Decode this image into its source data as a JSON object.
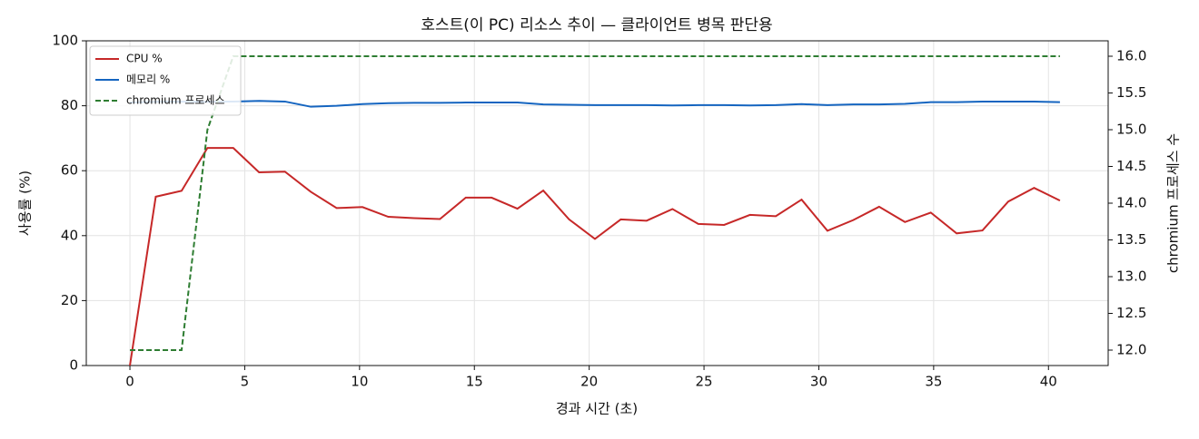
{
  "chart_data": {
    "type": "line",
    "title": "호스트(이 PC) 리소스 추이 — 클라이언트 병목 판단용",
    "x_label": "경과 시간 (초)",
    "y_label": "사용률 (%)",
    "y2_label": "chromium 프로세스 수",
    "x": [
      0,
      1.125,
      2.25,
      3.375,
      4.5,
      5.625,
      6.75,
      7.875,
      9,
      10.125,
      11.25,
      12.375,
      13.5,
      14.625,
      15.75,
      16.875,
      18,
      19.125,
      20.25,
      21.375,
      22.5,
      23.625,
      24.75,
      25.875,
      27,
      28.125,
      29.25,
      30.375,
      31.5,
      32.625,
      33.75,
      34.875,
      36,
      37.125,
      38.25,
      39.375,
      40.5
    ],
    "series": [
      {
        "name": "CPU %",
        "color": "#c62828",
        "values": [
          0,
          52,
          53.8,
          67,
          67,
          59.5,
          59.7,
          53.5,
          48.5,
          48.8,
          45.8,
          45.4,
          45.1,
          51.7,
          51.7,
          48.3,
          53.9,
          45,
          39,
          45,
          44.6,
          48.2,
          43.6,
          43.3,
          46.4,
          46,
          51.1,
          41.5,
          44.8,
          48.9,
          44.2,
          47.1,
          40.7,
          41.6,
          50.5,
          54.7,
          50.8
        ]
      },
      {
        "name": "메모리 %",
        "color": "#1565c0",
        "values": [
          81,
          81.2,
          81.3,
          81.2,
          81.3,
          81.5,
          81.3,
          79.7,
          80,
          80.5,
          80.8,
          80.9,
          80.9,
          81,
          81,
          81,
          80.4,
          80.3,
          80.2,
          80.2,
          80.2,
          80.1,
          80.2,
          80.2,
          80.1,
          80.2,
          80.5,
          80.2,
          80.4,
          80.4,
          80.6,
          81.1,
          81.1,
          81.3,
          81.3,
          81.3,
          81.1
        ]
      },
      {
        "name": "chromium 프로세스",
        "color": "#2e7d32",
        "dashed": true,
        "axis": "y2",
        "values": [
          12,
          12,
          12,
          15,
          16,
          16,
          16,
          16,
          16,
          16,
          16,
          16,
          16,
          16,
          16,
          16,
          16,
          16,
          16,
          16,
          16,
          16,
          16,
          16,
          16,
          16,
          16,
          16,
          16,
          16,
          16,
          16,
          16,
          16,
          16,
          16,
          16
        ]
      }
    ],
    "xlim": [
      -1.9,
      42.6
    ],
    "xticks": [
      0,
      5,
      10,
      15,
      20,
      25,
      30,
      35,
      40
    ],
    "ylim": [
      0,
      100
    ],
    "yticks": [
      0,
      20,
      40,
      60,
      80,
      100
    ],
    "y2lim": [
      11.79,
      16.21
    ],
    "y2ticks": [
      {
        "value": 12,
        "label": "12.0"
      },
      {
        "value": 12.5,
        "label": "12.5"
      },
      {
        "value": 13,
        "label": "13.0"
      },
      {
        "value": 13.5,
        "label": "13.5"
      },
      {
        "value": 14,
        "label": "14.0"
      },
      {
        "value": 14.5,
        "label": "14.5"
      },
      {
        "value": 15,
        "label": "15.0"
      },
      {
        "value": 15.5,
        "label": "15.5"
      },
      {
        "value": 16,
        "label": "16.0"
      }
    ],
    "grid": true,
    "legend": "upper-left"
  }
}
